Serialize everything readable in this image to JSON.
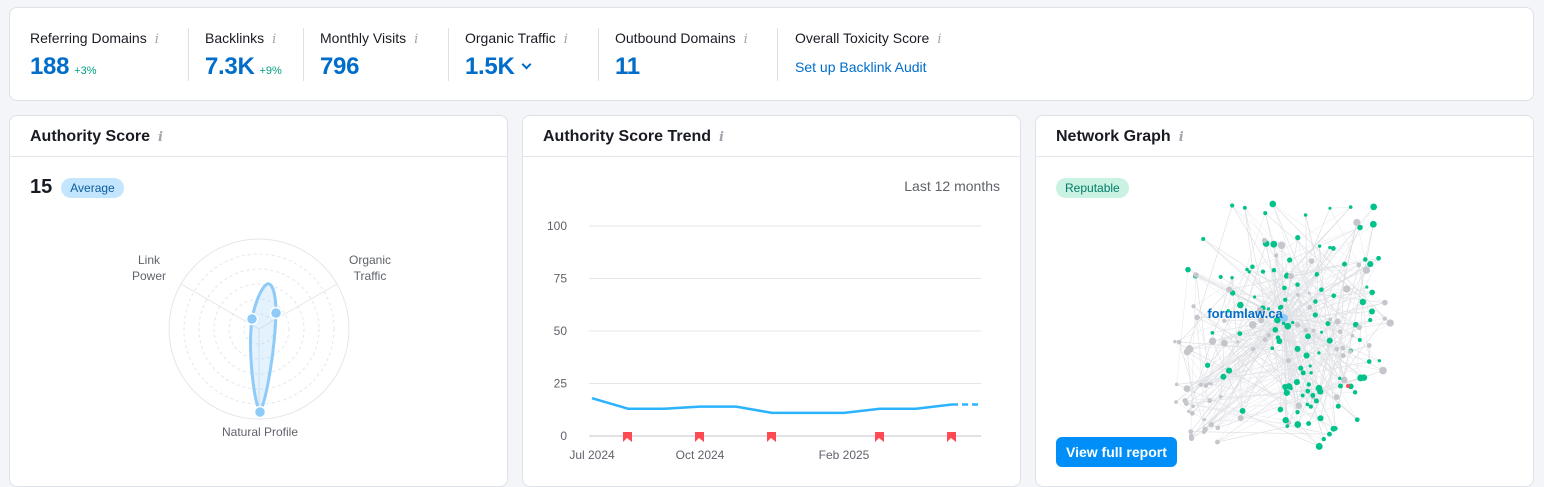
{
  "metrics": {
    "referring_domains": {
      "label": "Referring Domains",
      "value": "188",
      "delta": "+3%"
    },
    "backlinks": {
      "label": "Backlinks",
      "value": "7.3K",
      "delta": "+9%"
    },
    "monthly_visits": {
      "label": "Monthly Visits",
      "value": "796"
    },
    "organic_traffic": {
      "label": "Organic Traffic",
      "value": "1.5K"
    },
    "outbound_domains": {
      "label": "Outbound Domains",
      "value": "11"
    },
    "toxicity": {
      "label": "Overall Toxicity Score",
      "link": "Set up Backlink Audit"
    },
    "info_glyph": "i"
  },
  "authority": {
    "title": "Authority Score",
    "score": "15",
    "badge": "Average",
    "axes": {
      "link_power": [
        "Link",
        "Power"
      ],
      "organic_traffic": [
        "Organic",
        "Traffic"
      ],
      "natural_profile": "Natural Profile"
    },
    "accent": "#8ecbf9"
  },
  "trend": {
    "title": "Authority Score Trend",
    "period": "Last 12 months"
  },
  "network": {
    "title": "Network Graph",
    "badge": "Reputable",
    "domain": "forumlaw.ca",
    "button": "View full report",
    "colors": {
      "good": "#00c28a",
      "neutral": "#c4c6cc",
      "toxic": "#ff4953"
    }
  },
  "chart_data": {
    "type": "line",
    "title": "Authority Score Trend",
    "x": [
      "2024-07",
      "2024-08",
      "2024-09",
      "2024-10",
      "2024-11",
      "2024-12",
      "2025-01",
      "2025-02",
      "2025-03",
      "2025-04",
      "2025-05"
    ],
    "series": [
      {
        "values": [
          18,
          13,
          13,
          14,
          14,
          11,
          11,
          11,
          13,
          13,
          15
        ]
      }
    ],
    "projection": [
      15,
      15
    ],
    "x_tick_labels": [
      "Jul 2024",
      "Oct 2024",
      "Feb 2025"
    ],
    "x_tick_positions": [
      "2024-07",
      "2024-10",
      "2025-02"
    ],
    "y_ticks": [
      0,
      25,
      50,
      75,
      100
    ],
    "ylim": [
      0,
      100
    ],
    "flags": [
      "2024-08",
      "2024-10",
      "2024-12",
      "2025-03",
      "2025-05"
    ],
    "grid": true,
    "line_color": "#2bb3ff",
    "flag_color": "#ff4953"
  }
}
